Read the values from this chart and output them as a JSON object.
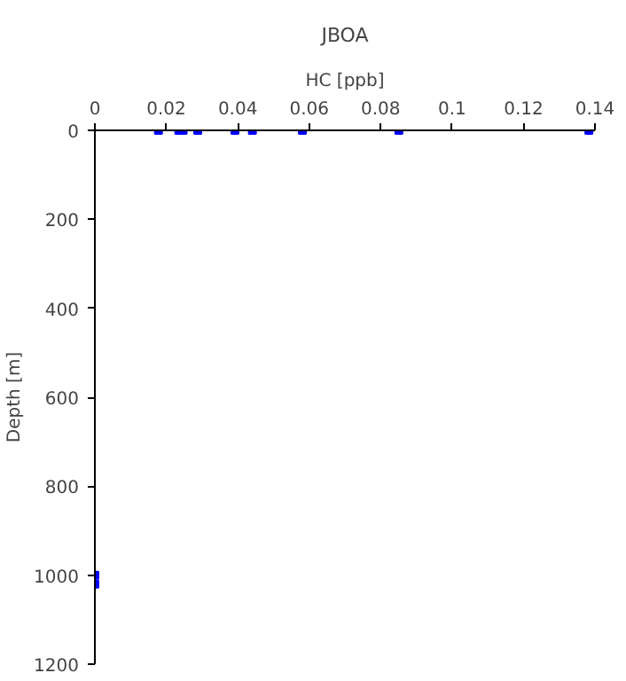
{
  "chart_data": {
    "type": "scatter",
    "title": "JBOA",
    "xlabel": "HC [ppb]",
    "ylabel": "Depth [m]",
    "x": [
      0.0178,
      0.0235,
      0.0247,
      0.0288,
      0.0392,
      0.0441,
      0.0581,
      0.0851,
      0.1383,
      0,
      0
    ],
    "series": [
      {
        "color": "#0000ff",
        "values": [
          0,
          0,
          0,
          0,
          0,
          0,
          0,
          0,
          0,
          1000,
          1020
        ]
      }
    ],
    "xlim": [
      0,
      0.14
    ],
    "xticks": [
      0,
      0.02,
      0.04,
      0.06,
      0.08,
      0.1,
      0.12,
      0.14
    ],
    "ylim": [
      1200,
      0
    ],
    "yticks": [
      0,
      200,
      400,
      600,
      800,
      1000,
      1200
    ],
    "grid": false,
    "marker": "square"
  }
}
